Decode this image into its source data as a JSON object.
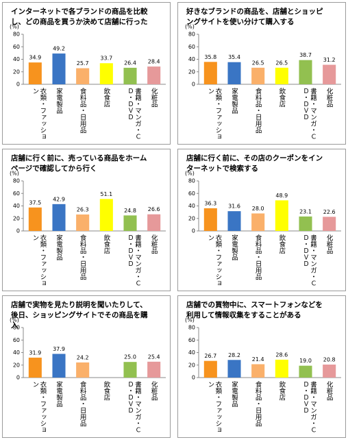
{
  "chart_data": [
    {
      "type": "bar",
      "title": "インターネットで各ブランドの商品を比較し、どの商品を買うか決めて店舗に行った",
      "y_label": "(%)",
      "categories": [
        "衣類・ファッション",
        "家電製品",
        "食料品・日用品",
        "飲食店",
        "書籍・マンガ・ＣＤ・ＤＶＤ",
        "化粧品"
      ],
      "values": [
        34.9,
        49.2,
        25.7,
        33.7,
        26.4,
        28.4
      ],
      "value_labels": [
        "34.9",
        "49.2",
        "25.7",
        "33.7",
        "26.4",
        "28.4"
      ],
      "colors": [
        "#F7931E",
        "#3A75C4",
        "#FAB06A",
        "#FFFF00",
        "#92C050",
        "#E6999A"
      ],
      "ylim": [
        0,
        80
      ],
      "yticks": [
        0,
        20,
        40,
        60,
        80
      ]
    },
    {
      "type": "bar",
      "title": "好きなブランドの商品を、店舗とショッピングサイトを使い分けて購入する",
      "y_label": "(%)",
      "categories": [
        "衣類・ファッション",
        "家電製品",
        "食料品・日用品",
        "飲食店",
        "書籍・マンガ・ＣＤ・ＤＶＤ",
        "化粧品"
      ],
      "values": [
        35.8,
        35.4,
        26.5,
        26.5,
        38.7,
        31.2
      ],
      "value_labels": [
        "35.8",
        "35.4",
        "26.5",
        "26.5",
        "38.7",
        "31.2"
      ],
      "colors": [
        "#F7931E",
        "#3A75C4",
        "#FAB06A",
        "#FFFF00",
        "#92C050",
        "#E6999A"
      ],
      "ylim": [
        0,
        80
      ],
      "yticks": [
        0,
        20,
        40,
        60,
        80
      ]
    },
    {
      "type": "bar",
      "title": "店舗に行く前に、売っている商品をホームページで確認してから行く",
      "y_label": "(%)",
      "categories": [
        "衣類・ファッション",
        "家電製品",
        "食料品・日用品",
        "飲食店",
        "書籍・マンガ・ＣＤ・ＤＶＤ",
        "化粧品"
      ],
      "values": [
        37.5,
        42.9,
        26.3,
        51.1,
        24.8,
        26.6
      ],
      "value_labels": [
        "37.5",
        "42.9",
        "26.3",
        "51.1",
        "24.8",
        "26.6"
      ],
      "colors": [
        "#F7931E",
        "#3A75C4",
        "#FAB06A",
        "#FFFF00",
        "#92C050",
        "#E6999A"
      ],
      "ylim": [
        0,
        80
      ],
      "yticks": [
        0,
        20,
        40,
        60,
        80
      ]
    },
    {
      "type": "bar",
      "title": "店舗に行く前に、その店のクーポンをインターネットで検索する",
      "y_label": "(%)",
      "categories": [
        "衣類・ファッション",
        "家電製品",
        "食料品・日用品",
        "飲食店",
        "書籍・マンガ・ＣＤ・ＤＶＤ",
        "化粧品"
      ],
      "values": [
        36.3,
        31.6,
        28.0,
        48.9,
        23.1,
        22.6
      ],
      "value_labels": [
        "36.3",
        "31.6",
        "28.0",
        "48.9",
        "23.1",
        "22.6"
      ],
      "colors": [
        "#F7931E",
        "#3A75C4",
        "#FAB06A",
        "#FFFF00",
        "#92C050",
        "#E6999A"
      ],
      "ylim": [
        0,
        80
      ],
      "yticks": [
        0,
        20,
        40,
        60,
        80
      ]
    },
    {
      "type": "bar",
      "title": "店舗で実物を見たり説明を聞いたりして、後日、ショッピングサイトでその商品を購入",
      "y_label": "(%)",
      "categories": [
        "衣類・ファッション",
        "家電製品",
        "食料品・日用品",
        "飲食店",
        "書籍・マンガ・ＣＤ・ＤＶＤ",
        "化粧品"
      ],
      "values": [
        31.9,
        37.9,
        24.2,
        null,
        25.0,
        25.4
      ],
      "value_labels": [
        "31.9",
        "37.9",
        "24.2",
        null,
        "25.0",
        "25.4"
      ],
      "colors": [
        "#F7931E",
        "#3A75C4",
        "#FAB06A",
        "#FFFF00",
        "#92C050",
        "#E6999A"
      ],
      "ylim": [
        0,
        80
      ],
      "yticks": [
        0,
        20,
        40,
        60,
        80
      ]
    },
    {
      "type": "bar",
      "title": "店舗での買物中に、スマートフォンなどを利用して情報収集をすることがある",
      "y_label": "(%)",
      "categories": [
        "衣類・ファッション",
        "家電製品",
        "食料品・日用品",
        "飲食店",
        "書籍・マンガ・ＣＤ・ＤＶＤ",
        "化粧品"
      ],
      "values": [
        26.7,
        28.2,
        21.4,
        28.6,
        19.0,
        20.8
      ],
      "value_labels": [
        "26.7",
        "28.2",
        "21.4",
        "28.6",
        "19.0",
        "20.8"
      ],
      "colors": [
        "#F7931E",
        "#3A75C4",
        "#FAB06A",
        "#FFFF00",
        "#92C050",
        "#E6999A"
      ],
      "ylim": [
        0,
        80
      ],
      "yticks": [
        0,
        20,
        40,
        60,
        80
      ]
    }
  ]
}
